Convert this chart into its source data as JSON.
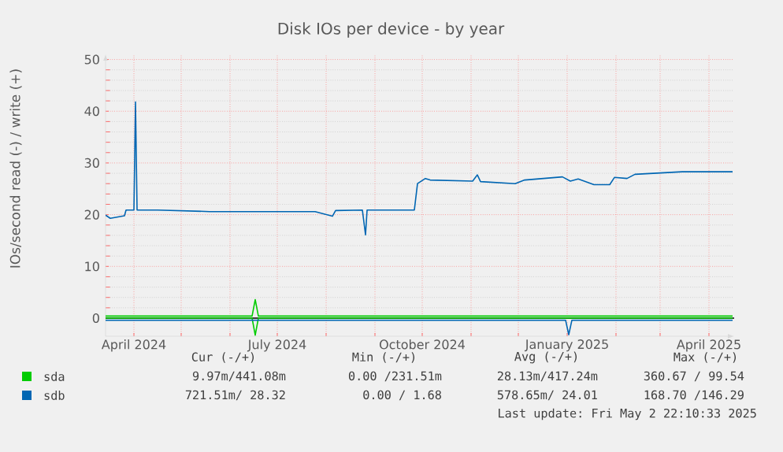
{
  "chart_data": {
    "type": "line",
    "title": "Disk IOs per device - by year",
    "ylabel": "IOs/second read (-) / write (+)",
    "xlim": [
      "2024-03-14",
      "2025-04-17"
    ],
    "ylim": [
      -3.5,
      51
    ],
    "yticks": [
      0,
      10,
      20,
      30,
      40,
      50
    ],
    "xticks": [
      {
        "value": "2024-04-01",
        "label": "April 2024"
      },
      {
        "value": "2024-05-01",
        "label": null
      },
      {
        "value": "2024-06-01",
        "label": null
      },
      {
        "value": "2024-07-01",
        "label": "July 2024"
      },
      {
        "value": "2024-08-01",
        "label": null
      },
      {
        "value": "2024-09-01",
        "label": null
      },
      {
        "value": "2024-10-01",
        "label": "October 2024"
      },
      {
        "value": "2024-11-01",
        "label": null
      },
      {
        "value": "2024-12-01",
        "label": null
      },
      {
        "value": "2025-01-01",
        "label": "January 2025"
      },
      {
        "value": "2025-02-01",
        "label": null
      },
      {
        "value": "2025-03-01",
        "label": null
      },
      {
        "value": "2025-04-01",
        "label": "April 2025"
      }
    ],
    "grid": true,
    "legend": "bottom left",
    "marker": "none",
    "line_style": "solid",
    "ref_lines": [
      {
        "axis": "y",
        "value": 0,
        "color": "#000000"
      }
    ],
    "series": [
      {
        "name": "sda",
        "color": "#00cc00",
        "x": [
          "2024-03-14",
          "2024-06-15",
          "2024-06-17",
          "2024-06-19",
          "2025-04-16"
        ],
        "values": [
          0.4,
          0.4,
          3.6,
          0.4,
          0.4
        ]
      },
      {
        "color": "#00cc00",
        "x": [
          "2024-03-14",
          "2024-06-15",
          "2024-06-17",
          "2024-06-19",
          "2025-04-16"
        ],
        "values": [
          0,
          0,
          -3.3,
          0,
          0
        ]
      },
      {
        "name": "sdb",
        "color": "#0066b3",
        "x": [
          "2024-03-14",
          "2024-03-17",
          "2024-03-26",
          "2024-03-27",
          "2024-04-01",
          "2024-04-02",
          "2024-04-03",
          "2024-04-16",
          "2024-05-19",
          "2024-07-25",
          "2024-08-05",
          "2024-08-07",
          "2024-08-24",
          "2024-08-26",
          "2024-08-27",
          "2024-09-26",
          "2024-09-28",
          "2024-10-03",
          "2024-10-06",
          "2024-11-02",
          "2024-11-05",
          "2024-11-07",
          "2024-11-29",
          "2024-12-05",
          "2024-12-29",
          "2025-01-03",
          "2025-01-08",
          "2025-01-18",
          "2025-01-28",
          "2025-01-31",
          "2025-02-08",
          "2025-02-13",
          "2025-03-15",
          "2025-04-16"
        ],
        "values": [
          19.9,
          19.3,
          19.8,
          20.9,
          20.9,
          41.8,
          20.9,
          20.9,
          20.6,
          20.6,
          19.7,
          20.8,
          20.9,
          16.1,
          20.9,
          20.9,
          26.0,
          27.0,
          26.7,
          26.5,
          27.7,
          26.4,
          26.0,
          26.7,
          27.3,
          26.5,
          26.9,
          25.8,
          25.8,
          27.2,
          27.0,
          27.8,
          28.3,
          28.3
        ]
      },
      {
        "color": "#0066b3",
        "x": [
          "2024-03-14",
          "2024-12-31",
          "2025-01-02",
          "2025-01-04",
          "2025-04-16"
        ],
        "values": [
          -0.4,
          -0.4,
          -3.2,
          -0.4,
          -0.4
        ]
      }
    ],
    "annotations": [
      "Cur (-/+)",
      "Min (-/+)",
      "Avg (-/+)",
      "Max (-/+)",
      "9.97m/441.08m",
      "0.00 /231.51m",
      "28.13m/417.24m",
      "360.67 / 99.54",
      "721.51m/ 28.32",
      "0.00 /  1.68",
      "578.65m/ 24.01",
      "168.70 /146.29",
      "Last update: Fri May  2 22:10:33 2025"
    ]
  }
}
